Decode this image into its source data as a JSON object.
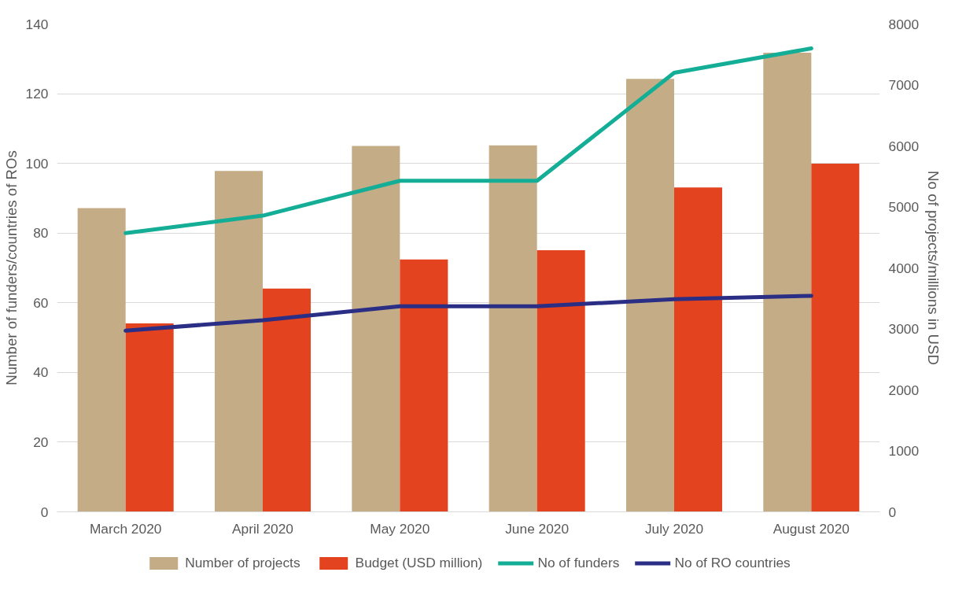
{
  "chart_data": {
    "type": "bar",
    "categories": [
      "March 2020",
      "April 2020",
      "May 2020",
      "June 2020",
      "July 2020",
      "August 2020"
    ],
    "ylabel": "Number of funders/countries of ROs",
    "y2label": "No of projects/millions in USD",
    "ylim": [
      0,
      140
    ],
    "yticks": [
      0,
      20,
      40,
      60,
      80,
      100,
      120,
      140
    ],
    "y2lim": [
      0,
      8000
    ],
    "y2ticks": [
      0,
      1000,
      2000,
      3000,
      4000,
      5000,
      6000,
      7000,
      8000
    ],
    "grid": "y",
    "legend": "bottom",
    "series": [
      {
        "name": "Number of projects",
        "axis": "y2",
        "color": "#c4ac86",
        "values": [
          4980,
          5590,
          6000,
          6010,
          7100,
          7530
        ]
      },
      {
        "name": "Budget (USD million)",
        "axis": "y2",
        "color": "#e3431e",
        "values": [
          3090,
          3660,
          4140,
          4290,
          5320,
          5710
        ]
      },
      {
        "name": "No of funders",
        "type": "line",
        "color": "#14ae96",
        "values": [
          80,
          85,
          95,
          95,
          126,
          133
        ]
      },
      {
        "name": "No of RO countries",
        "type": "line",
        "color": "#2b2e85",
        "values": [
          52,
          55,
          59,
          59,
          61,
          62
        ]
      }
    ]
  }
}
